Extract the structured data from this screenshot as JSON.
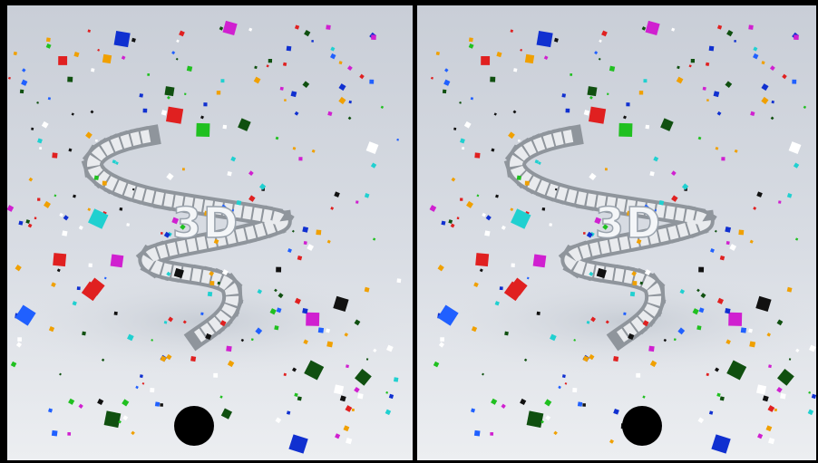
{
  "views": [
    {
      "logo": "3D"
    },
    {
      "logo": "3D"
    }
  ]
}
